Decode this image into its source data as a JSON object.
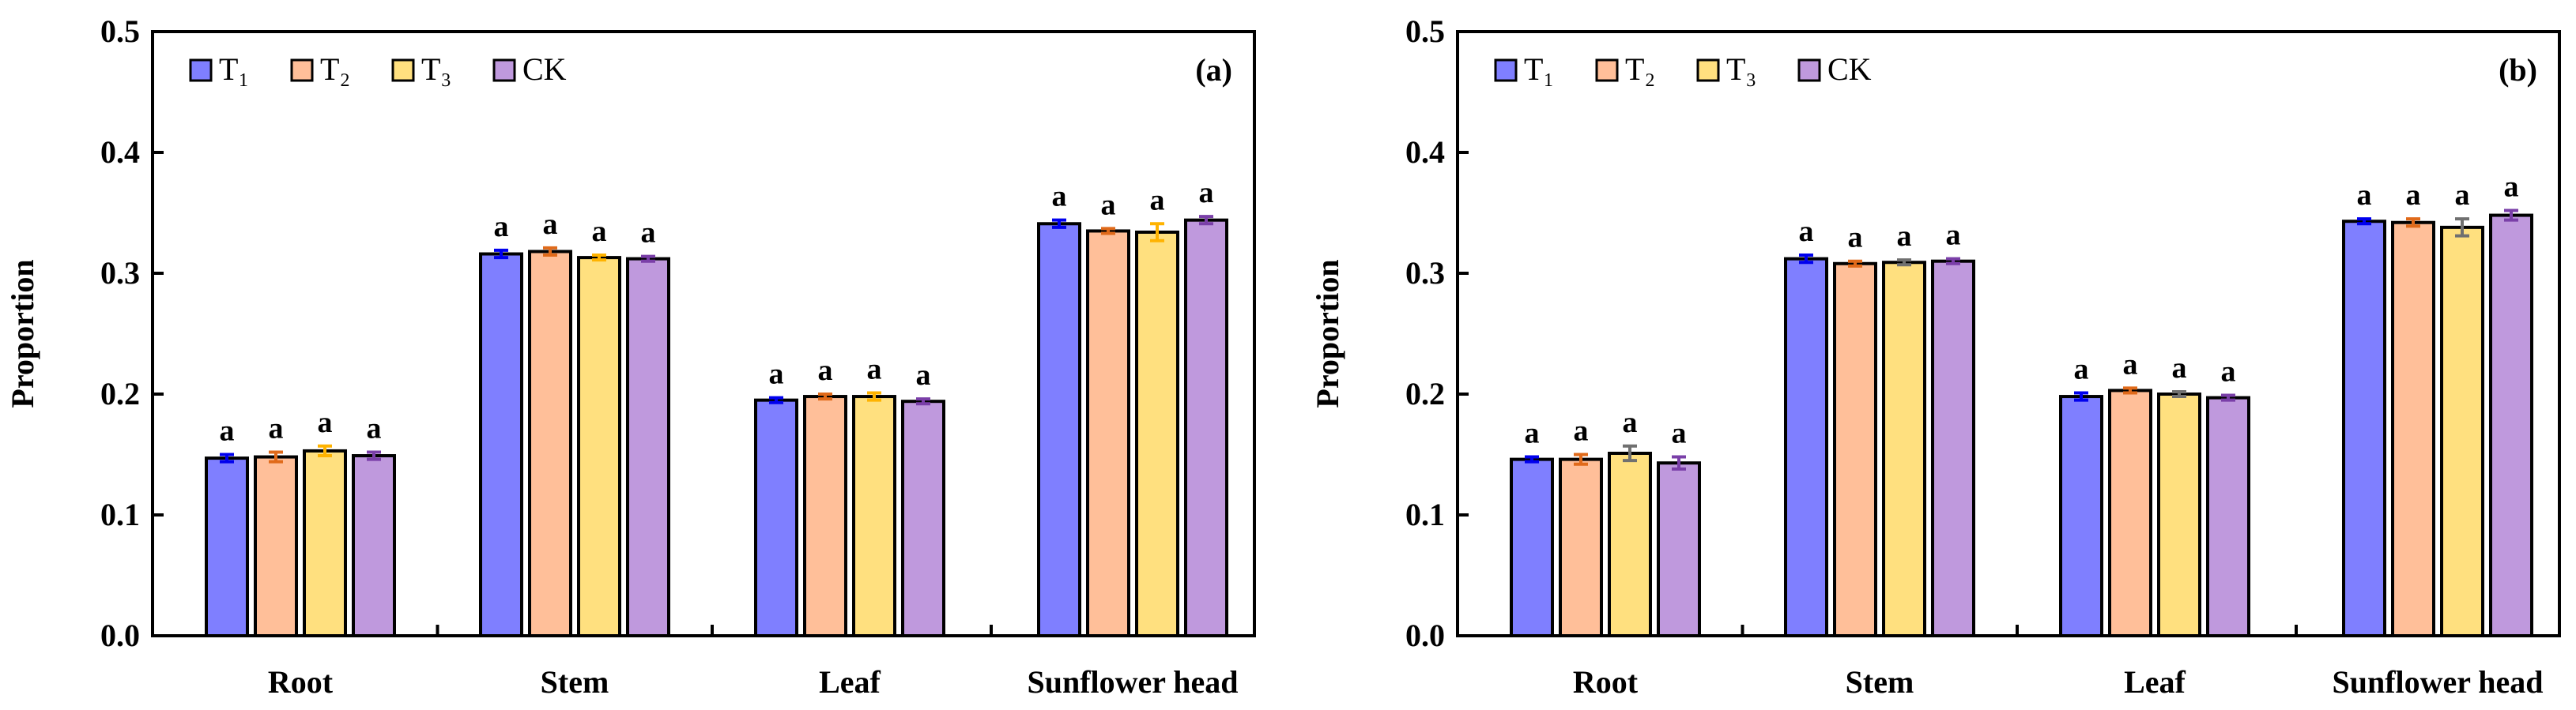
{
  "colors": {
    "T1": "#7f7fff",
    "T2": "#ffbf99",
    "T3": "#ffe07f",
    "CK": "#bf99dd",
    "err_T1": "#0000ee",
    "err_T2": "#e06a1a",
    "err_T3": "#ffb300",
    "err_CK": "#7a3fa8",
    "err_gray": "#707070"
  },
  "chart_data": [
    {
      "type": "bar",
      "panel_label": "(a)",
      "ylabel": "Proportion",
      "ylim": [
        0,
        0.5
      ],
      "yticks": [
        "0.0",
        "0.1",
        "0.2",
        "0.3",
        "0.4",
        "0.5"
      ],
      "categories": [
        "Root",
        "Stem",
        "Leaf",
        "Sunflower head"
      ],
      "legend": {
        "position": "top-left",
        "entries": [
          {
            "key": "T1",
            "label": "T₁"
          },
          {
            "key": "T2",
            "label": "T₂"
          },
          {
            "key": "T3",
            "label": "T₃"
          },
          {
            "key": "CK",
            "label": "CK"
          }
        ]
      },
      "series": [
        {
          "name": "T₁",
          "key": "T1",
          "values": [
            0.147,
            0.316,
            0.195,
            0.341
          ],
          "errors": [
            0.003,
            0.003,
            0.002,
            0.003
          ],
          "sig": [
            "a",
            "a",
            "a",
            "a"
          ]
        },
        {
          "name": "T₂",
          "key": "T2",
          "values": [
            0.148,
            0.318,
            0.198,
            0.335
          ],
          "errors": [
            0.004,
            0.003,
            0.002,
            0.002
          ],
          "sig": [
            "a",
            "a",
            "a",
            "a"
          ]
        },
        {
          "name": "T₃",
          "key": "T3",
          "values": [
            0.153,
            0.313,
            0.198,
            0.334
          ],
          "errors": [
            0.004,
            0.002,
            0.003,
            0.007
          ],
          "sig": [
            "a",
            "a",
            "a",
            "a"
          ]
        },
        {
          "name": "CK",
          "key": "CK",
          "values": [
            0.149,
            0.312,
            0.194,
            0.344
          ],
          "errors": [
            0.003,
            0.002,
            0.002,
            0.003
          ],
          "sig": [
            "a",
            "a",
            "a",
            "a"
          ]
        }
      ]
    },
    {
      "type": "bar",
      "panel_label": "(b)",
      "ylabel": "Proportion",
      "ylim": [
        0,
        0.5
      ],
      "yticks": [
        "0.0",
        "0.1",
        "0.2",
        "0.3",
        "0.4",
        "0.5"
      ],
      "categories": [
        "Root",
        "Stem",
        "Leaf",
        "Sunflower head"
      ],
      "legend": {
        "position": "top-left",
        "entries": [
          {
            "key": "T1",
            "label": "T₁"
          },
          {
            "key": "T2",
            "label": "T₂"
          },
          {
            "key": "T3",
            "label": "T₃"
          },
          {
            "key": "CK",
            "label": "CK"
          }
        ]
      },
      "series": [
        {
          "name": "T₁",
          "key": "T1",
          "values": [
            0.146,
            0.312,
            0.198,
            0.343
          ],
          "errors": [
            0.002,
            0.003,
            0.003,
            0.002
          ],
          "sig": [
            "a",
            "a",
            "a",
            "a"
          ]
        },
        {
          "name": "T₂",
          "key": "T2",
          "values": [
            0.146,
            0.308,
            0.203,
            0.342
          ],
          "errors": [
            0.004,
            0.002,
            0.002,
            0.003
          ],
          "sig": [
            "a",
            "a",
            "a",
            "a"
          ]
        },
        {
          "name": "T₃",
          "key": "T3",
          "values": [
            0.151,
            0.309,
            0.2,
            0.338
          ],
          "errors": [
            0.006,
            0.002,
            0.002,
            0.007
          ],
          "sig": [
            "a",
            "a",
            "a",
            "a"
          ],
          "err_color": "gray"
        },
        {
          "name": "CK",
          "key": "CK",
          "values": [
            0.143,
            0.31,
            0.197,
            0.348
          ],
          "errors": [
            0.005,
            0.002,
            0.002,
            0.004
          ],
          "sig": [
            "a",
            "a",
            "a",
            "a"
          ]
        }
      ]
    }
  ]
}
